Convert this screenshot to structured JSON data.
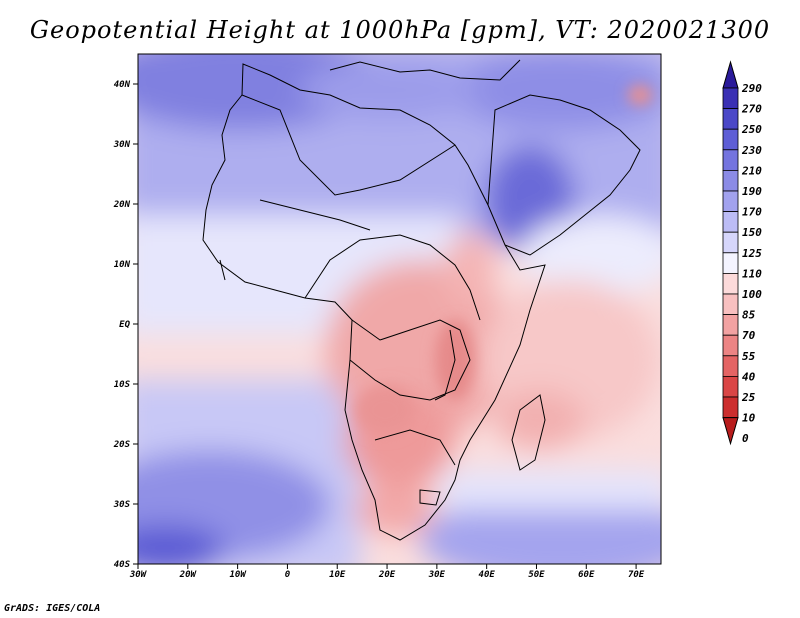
{
  "title": "Geopotential Height at 1000hPa [gpm], VT: 2020021300",
  "credit": "GrADS: IGES/COLA",
  "map": {
    "lon_range": [
      -30,
      75
    ],
    "lat_range": [
      -40,
      45
    ],
    "lat_labels": [
      "40N",
      "30N",
      "20N",
      "10N",
      "EQ",
      "10S",
      "20S",
      "30S",
      "40S"
    ],
    "lon_labels": [
      "30W",
      "20W",
      "10W",
      "0",
      "10E",
      "20E",
      "30E",
      "40E",
      "50E",
      "60E",
      "70E"
    ]
  },
  "colorbar": {
    "levels": [
      "290",
      "270",
      "250",
      "230",
      "210",
      "190",
      "170",
      "150",
      "125",
      "110",
      "100",
      "85",
      "70",
      "55",
      "40",
      "25",
      "10",
      "0"
    ],
    "colors": [
      "#2a1a9a",
      "#3a30b4",
      "#4b48c8",
      "#5e5ed6",
      "#7474df",
      "#8b8be6",
      "#a2a2ee",
      "#bcbcf5",
      "#d6d6fb",
      "#f4f4ff",
      "#fcdada",
      "#f8c0c0",
      "#f2a2a2",
      "#ec8484",
      "#e46464",
      "#da4646",
      "#cc2e2e",
      "#b81c1c"
    ]
  }
}
